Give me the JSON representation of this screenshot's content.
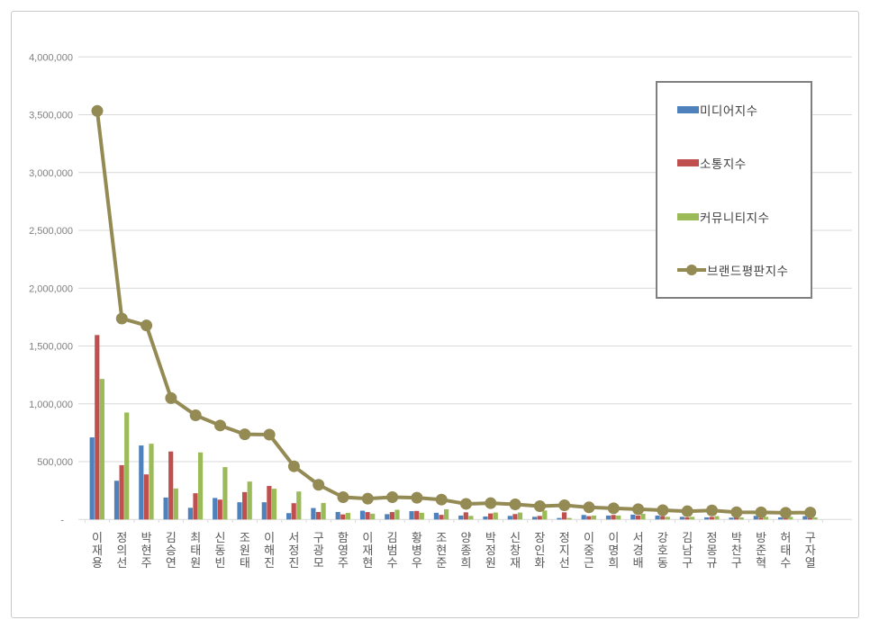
{
  "window": {
    "background": "#ffffff",
    "frame_border_color": "#c9c9c9"
  },
  "chart_data": {
    "type": "bar",
    "subtype": "grouped-bars-with-line-overlay",
    "title": "",
    "xlabel": "",
    "ylabel": "",
    "ylim": [
      0,
      4000000
    ],
    "y_tick_step": 500000,
    "y_tick_labels": [
      "4,000,000",
      "3,500,000",
      "3,000,000",
      "2,500,000",
      "2,000,000",
      "1,500,000",
      "1,000,000",
      "500,000",
      "-"
    ],
    "grid": true,
    "grid_color": "#d9d9d9",
    "axis_label_color": "#7f7f7f",
    "category_label_color": "#595959",
    "legend_position": "top-right",
    "legend_border_color": "#7f7f7f",
    "legend_text_color": "#404040",
    "categories": [
      "이재용",
      "정의선",
      "박현주",
      "김승연",
      "최태원",
      "신동빈",
      "조원태",
      "이해진",
      "서정진",
      "구광모",
      "함영주",
      "이재현",
      "김범수",
      "황병우",
      "조현준",
      "양종희",
      "박정원",
      "신창재",
      "장인화",
      "정지선",
      "이중근",
      "이명희",
      "서경배",
      "강호동",
      "김남구",
      "정몽규",
      "박찬구",
      "방준혁",
      "허태수",
      "구자열"
    ],
    "series": [
      {
        "name": "미디어지수",
        "chart_type": "bar",
        "color": "#4f81bd",
        "values": [
          710000,
          335000,
          640000,
          190000,
          101000,
          186000,
          149000,
          149000,
          55000,
          99000,
          65000,
          76000,
          46000,
          72000,
          58000,
          34000,
          26000,
          31000,
          23000,
          13000,
          39000,
          34000,
          42000,
          34000,
          23000,
          18000,
          16000,
          31000,
          18000,
          29000
        ]
      },
      {
        "name": "소통지수",
        "chart_type": "bar",
        "color": "#c0504d",
        "values": [
          1595000,
          470000,
          390000,
          588000,
          227000,
          172000,
          237000,
          290000,
          141000,
          65000,
          44000,
          64000,
          64000,
          74000,
          40000,
          62000,
          52000,
          47000,
          31000,
          62000,
          29000,
          39000,
          34000,
          29000,
          18000,
          23000,
          23000,
          13000,
          18000,
          13000
        ]
      },
      {
        "name": "커뮤니티지수",
        "chart_type": "bar",
        "color": "#9bbb59",
        "values": [
          1215000,
          925000,
          655000,
          268000,
          580000,
          453000,
          328000,
          266000,
          242000,
          143000,
          57000,
          50000,
          84000,
          58000,
          88000,
          31000,
          60000,
          60000,
          78000,
          13000,
          34000,
          34000,
          49000,
          23000,
          23000,
          29000,
          18000,
          23000,
          23000,
          18000
        ]
      },
      {
        "name": "브랜드평판지수",
        "chart_type": "line",
        "color": "#948a54",
        "values": [
          3533000,
          1738000,
          1678000,
          1050000,
          901000,
          813000,
          737000,
          734000,
          460000,
          300000,
          193000,
          180000,
          193000,
          188000,
          172000,
          135000,
          141000,
          131000,
          115000,
          123000,
          105000,
          97000,
          89000,
          80000,
          71000,
          78000,
          63000,
          62000,
          58000,
          60000
        ]
      }
    ]
  }
}
